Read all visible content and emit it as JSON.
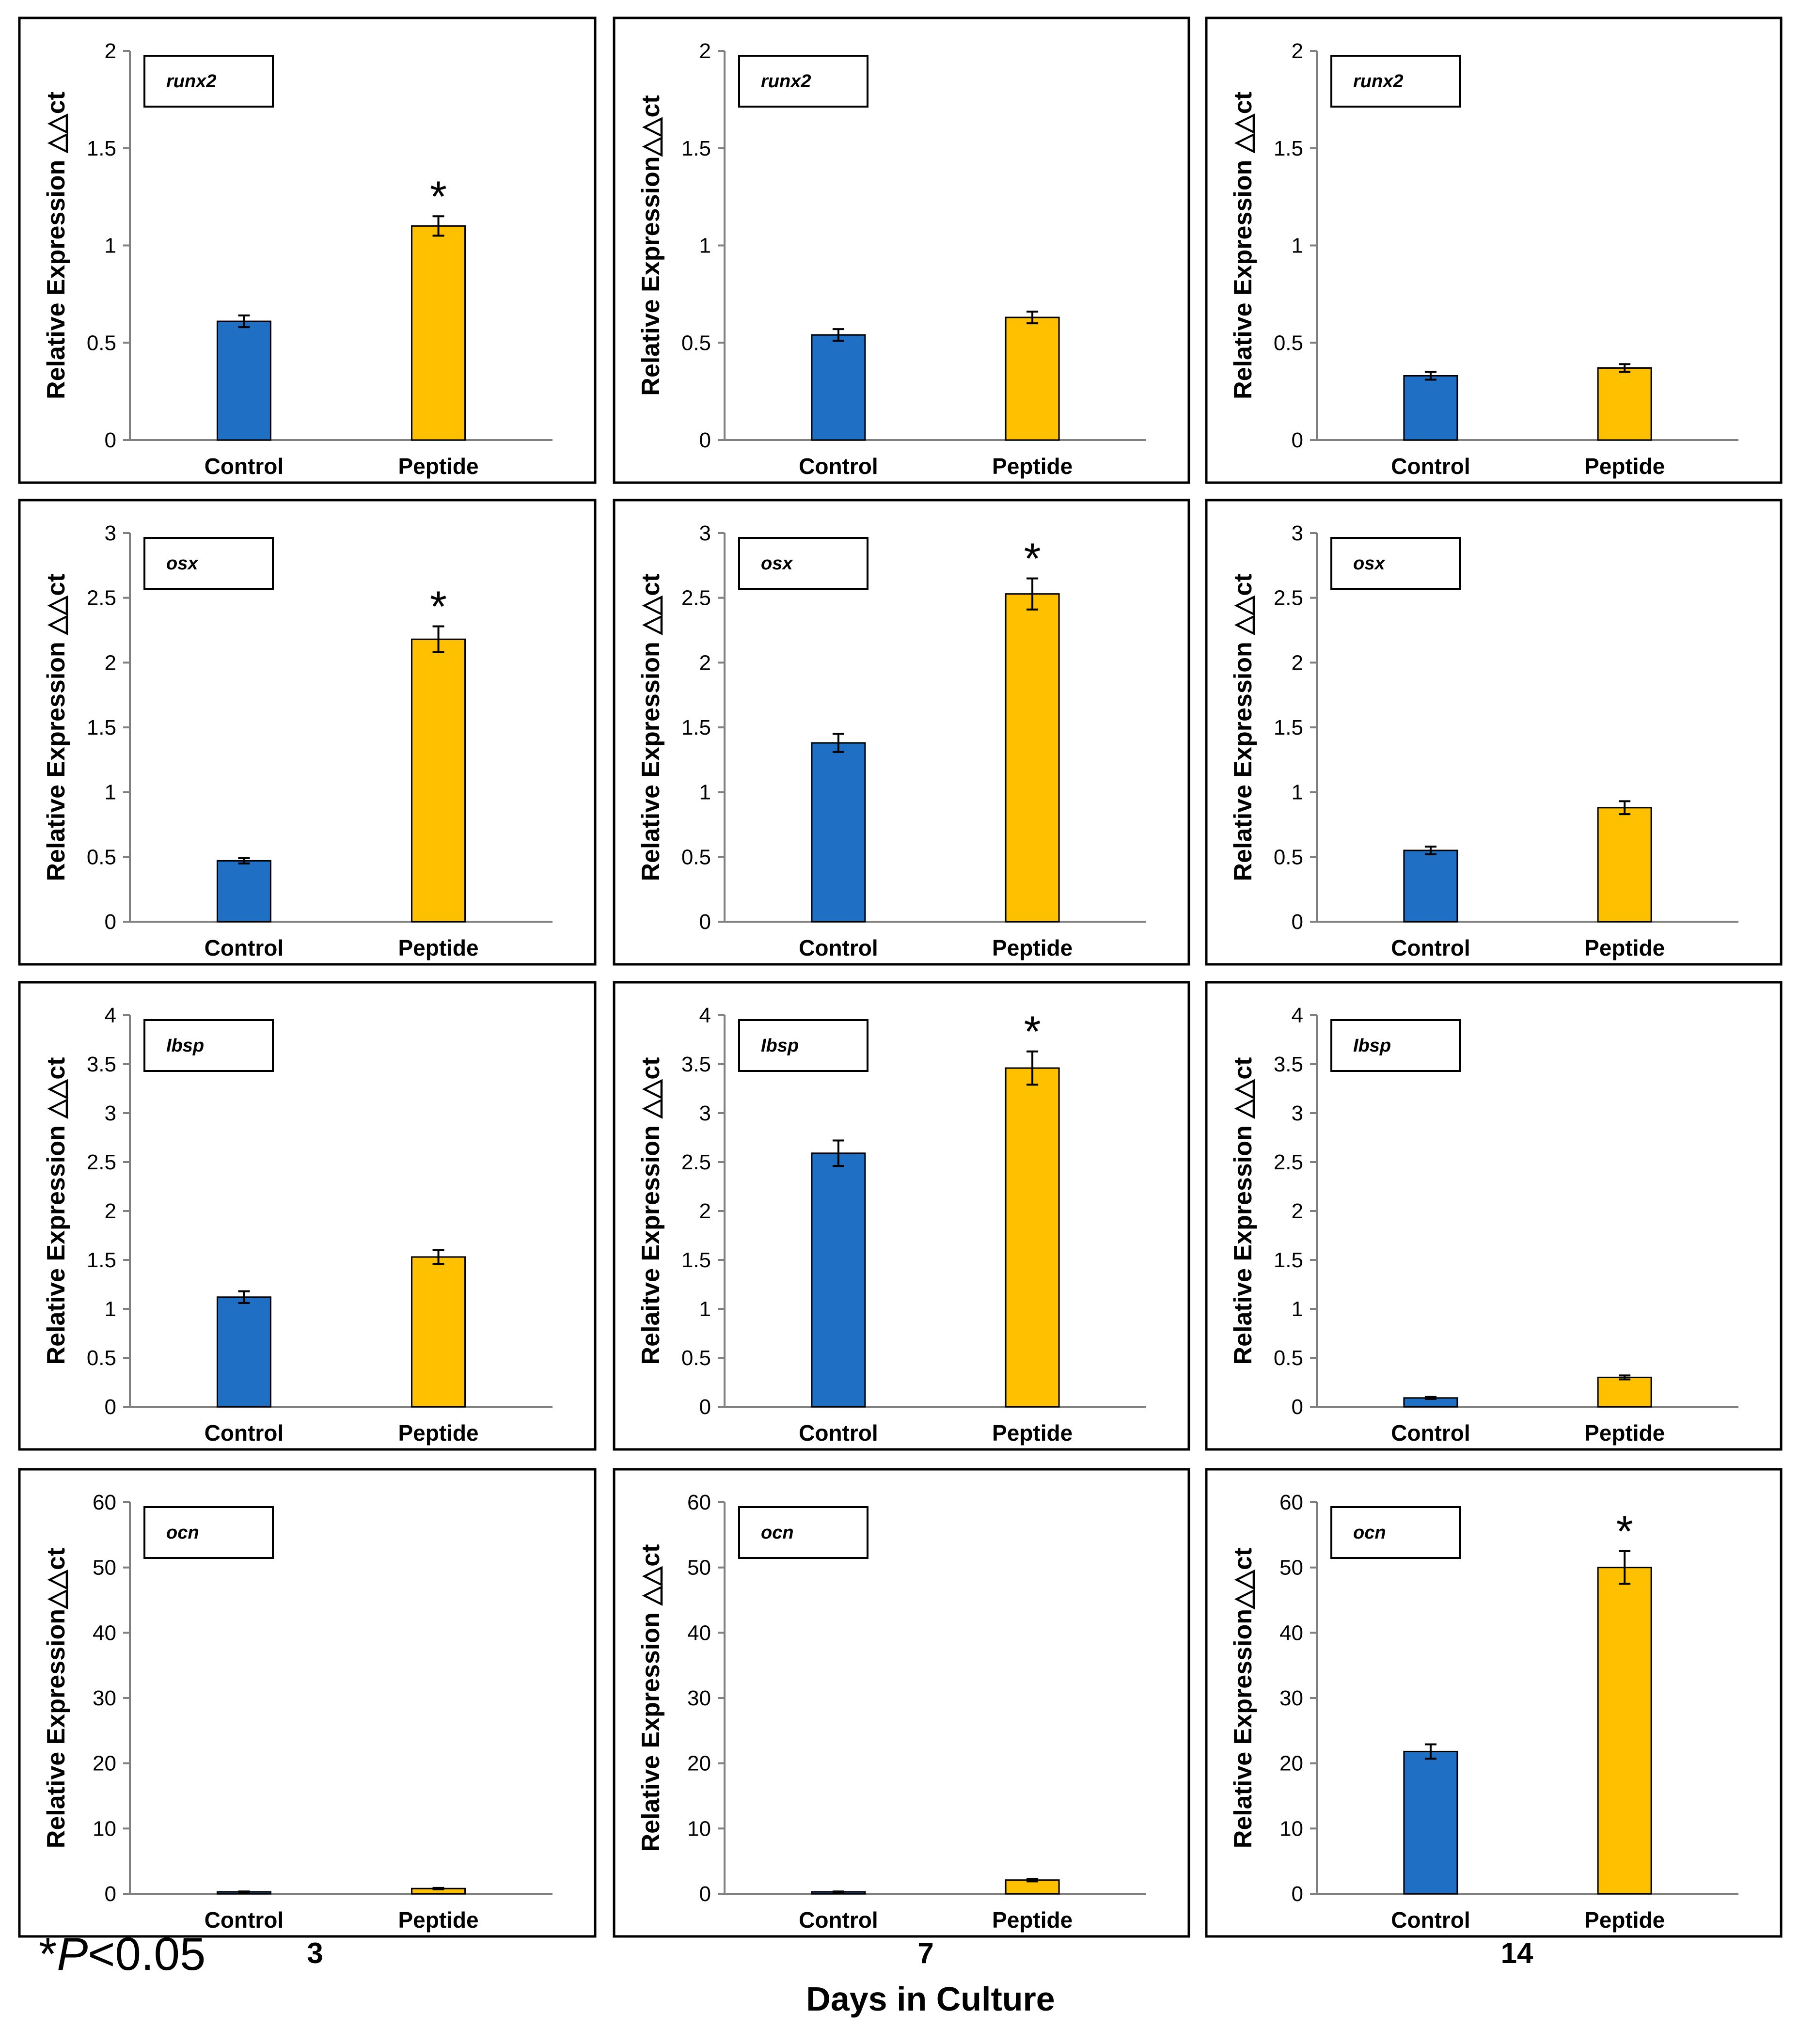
{
  "colors": {
    "control": "#1f6fc5",
    "peptide": "#ffc000",
    "axis": "#808080",
    "frame": "#000000",
    "text": "#000000"
  },
  "footer": {
    "significance_star": "*",
    "significance_p": "P",
    "significance_threshold": "<0.05",
    "days": [
      "3",
      "7",
      "14"
    ],
    "x_axis_title": "Days  in  Culture"
  },
  "chart_data": [
    {
      "type": "bar",
      "row": 0,
      "col": 0,
      "gene": "runx2",
      "title": "runx2",
      "ylabel": "Relative  Expression △△ct",
      "categories": [
        "Control",
        "Peptide"
      ],
      "values": [
        0.61,
        1.1
      ],
      "errors": [
        0.03,
        0.05
      ],
      "ylim": [
        0,
        2
      ],
      "ticks": [
        "0",
        "0.5",
        "1",
        "1.5",
        "2"
      ],
      "tick_values": [
        0,
        0.5,
        1,
        1.5,
        2
      ],
      "significant": [
        false,
        true
      ]
    },
    {
      "type": "bar",
      "row": 0,
      "col": 1,
      "gene": "runx2",
      "title": "runx2",
      "ylabel": "Relative Expression△△ct",
      "categories": [
        "Control",
        "Peptide"
      ],
      "values": [
        0.54,
        0.63
      ],
      "errors": [
        0.03,
        0.03
      ],
      "ylim": [
        0,
        2
      ],
      "ticks": [
        "0",
        "0.5",
        "1",
        "1.5",
        "2"
      ],
      "tick_values": [
        0,
        0.5,
        1,
        1.5,
        2
      ],
      "significant": [
        false,
        false
      ]
    },
    {
      "type": "bar",
      "row": 0,
      "col": 2,
      "gene": "runx2",
      "title": "runx2",
      "ylabel": "Relative Expression △△ct",
      "categories": [
        "Control",
        "Peptide"
      ],
      "values": [
        0.33,
        0.37
      ],
      "errors": [
        0.02,
        0.02
      ],
      "ylim": [
        0,
        2
      ],
      "ticks": [
        "0",
        "0.5",
        "1",
        "1.5",
        "2"
      ],
      "tick_values": [
        0,
        0.5,
        1,
        1.5,
        2
      ],
      "significant": [
        false,
        false
      ]
    },
    {
      "type": "bar",
      "row": 1,
      "col": 0,
      "gene": "osx",
      "title": "osx",
      "ylabel": "Relative  Expression △△ct",
      "categories": [
        "Control",
        "Peptide"
      ],
      "values": [
        0.47,
        2.18
      ],
      "errors": [
        0.02,
        0.1
      ],
      "ylim": [
        0,
        3
      ],
      "ticks": [
        "0",
        "0.5",
        "1",
        "1.5",
        "2",
        "2.5",
        "3"
      ],
      "tick_values": [
        0,
        0.5,
        1,
        1.5,
        2,
        2.5,
        3
      ],
      "significant": [
        false,
        true
      ]
    },
    {
      "type": "bar",
      "row": 1,
      "col": 1,
      "gene": "osx",
      "title": "osx",
      "ylabel": "Relative Expression △△ct",
      "categories": [
        "Control",
        "Peptide"
      ],
      "values": [
        1.38,
        2.53
      ],
      "errors": [
        0.07,
        0.12
      ],
      "ylim": [
        0,
        3
      ],
      "ticks": [
        "0",
        "0.5",
        "1",
        "1.5",
        "2",
        "2.5",
        "3"
      ],
      "tick_values": [
        0,
        0.5,
        1,
        1.5,
        2,
        2.5,
        3
      ],
      "significant": [
        false,
        true
      ]
    },
    {
      "type": "bar",
      "row": 1,
      "col": 2,
      "gene": "osx",
      "title": "osx",
      "ylabel": "Relative Expression △△ct",
      "categories": [
        "Control",
        "Peptide"
      ],
      "values": [
        0.55,
        0.88
      ],
      "errors": [
        0.03,
        0.05
      ],
      "ylim": [
        0,
        3
      ],
      "ticks": [
        "0",
        "0.5",
        "1",
        "1.5",
        "2",
        "2.5",
        "3"
      ],
      "tick_values": [
        0,
        0.5,
        1,
        1.5,
        2,
        2.5,
        3
      ],
      "significant": [
        false,
        false
      ]
    },
    {
      "type": "bar",
      "row": 2,
      "col": 0,
      "gene": "Ibsp",
      "title": "Ibsp",
      "ylabel": "Relative Expression △△ct",
      "categories": [
        "Control",
        "Peptide"
      ],
      "values": [
        1.12,
        1.53
      ],
      "errors": [
        0.06,
        0.07
      ],
      "ylim": [
        0,
        4
      ],
      "ticks": [
        "0",
        "0.5",
        "1",
        "1.5",
        "2",
        "2.5",
        "3",
        "3.5",
        "4"
      ],
      "tick_values": [
        0,
        0.5,
        1,
        1.5,
        2,
        2.5,
        3,
        3.5,
        4
      ],
      "significant": [
        false,
        false
      ]
    },
    {
      "type": "bar",
      "row": 2,
      "col": 1,
      "gene": "Ibsp",
      "title": "Ibsp",
      "ylabel": "Relaitve Expression △△ct",
      "categories": [
        "Control",
        "Peptide"
      ],
      "values": [
        2.59,
        3.46
      ],
      "errors": [
        0.13,
        0.17
      ],
      "ylim": [
        0,
        4
      ],
      "ticks": [
        "0",
        "0.5",
        "1",
        "1.5",
        "2",
        "2.5",
        "3",
        "3.5",
        "4"
      ],
      "tick_values": [
        0,
        0.5,
        1,
        1.5,
        2,
        2.5,
        3,
        3.5,
        4
      ],
      "significant": [
        false,
        true
      ]
    },
    {
      "type": "bar",
      "row": 2,
      "col": 2,
      "gene": "Ibsp",
      "title": "Ibsp",
      "ylabel": "Relative Expression △△ct",
      "categories": [
        "Control",
        "Peptide"
      ],
      "values": [
        0.09,
        0.3
      ],
      "errors": [
        0.01,
        0.02
      ],
      "ylim": [
        0,
        4
      ],
      "ticks": [
        "0",
        "0.5",
        "1",
        "1.5",
        "2",
        "2.5",
        "3",
        "3.5",
        "4"
      ],
      "tick_values": [
        0,
        0.5,
        1,
        1.5,
        2,
        2.5,
        3,
        3.5,
        4
      ],
      "significant": [
        false,
        false
      ]
    },
    {
      "type": "bar",
      "row": 3,
      "col": 0,
      "gene": "ocn",
      "title": "ocn",
      "ylabel": "Relative Expression△△ct",
      "categories": [
        "Control",
        "Peptide"
      ],
      "values": [
        0.3,
        0.8
      ],
      "errors": [
        0.05,
        0.1
      ],
      "ylim": [
        0,
        60
      ],
      "ticks": [
        "0",
        "10",
        "20",
        "30",
        "40",
        "50",
        "60"
      ],
      "tick_values": [
        0,
        10,
        20,
        30,
        40,
        50,
        60
      ],
      "significant": [
        false,
        false
      ]
    },
    {
      "type": "bar",
      "row": 3,
      "col": 1,
      "gene": "ocn",
      "title": "ocn",
      "ylabel": "Relative Expression △△ct",
      "categories": [
        "Control",
        "Peptide"
      ],
      "values": [
        0.3,
        2.1
      ],
      "errors": [
        0.05,
        0.2
      ],
      "ylim": [
        0,
        60
      ],
      "ticks": [
        "0",
        "10",
        "20",
        "30",
        "40",
        "50",
        "60"
      ],
      "tick_values": [
        0,
        10,
        20,
        30,
        40,
        50,
        60
      ],
      "significant": [
        false,
        false
      ]
    },
    {
      "type": "bar",
      "row": 3,
      "col": 2,
      "gene": "ocn",
      "title": "ocn",
      "ylabel": "Relative Expression△△ct",
      "categories": [
        "Control",
        "Peptide"
      ],
      "values": [
        21.8,
        50.0
      ],
      "errors": [
        1.1,
        2.5
      ],
      "ylim": [
        0,
        60
      ],
      "ticks": [
        "0",
        "10",
        "20",
        "30",
        "40",
        "50",
        "60"
      ],
      "tick_values": [
        0,
        10,
        20,
        30,
        40,
        50,
        60
      ],
      "significant": [
        false,
        true
      ]
    }
  ]
}
